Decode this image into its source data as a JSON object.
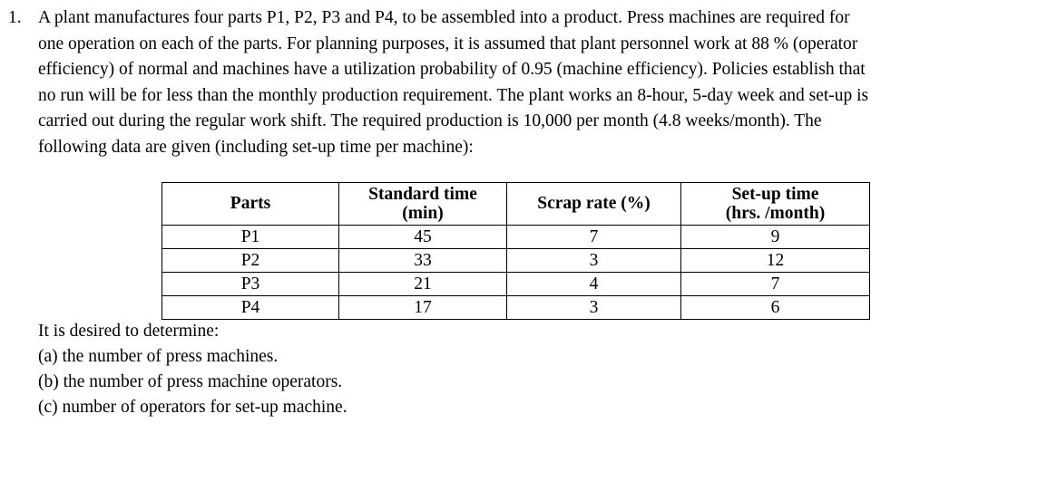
{
  "problem": {
    "number": "1.",
    "lines": [
      "A plant manufactures four parts P1, P2, P3 and P4, to be assembled into a product. Press machines are required for",
      "one operation on each of the parts. For planning purposes, it is assumed that plant personnel work at 88 % (operator",
      "efficiency) of normal and machines have a utilization probability of 0.95 (machine efficiency). Policies establish that",
      "no run will be for less than the monthly production requirement. The plant works an 8-hour, 5-day week and set-up is",
      "carried out during the regular work shift. The required production is 10,000 per month (4.8 weeks/month). The",
      "following data are given (including set-up time per machine):"
    ]
  },
  "table": {
    "headers": {
      "parts": "Parts",
      "standard_time": "Standard time\n(min)",
      "scrap_rate": "Scrap rate (%)",
      "setup_time": "Set-up time\n(hrs. /month)"
    },
    "rows": [
      {
        "part": "P1",
        "standard_time": "45",
        "scrap_rate": "7",
        "setup_time": "9"
      },
      {
        "part": "P2",
        "standard_time": "33",
        "scrap_rate": "3",
        "setup_time": "12"
      },
      {
        "part": "P3",
        "standard_time": "21",
        "scrap_rate": "4",
        "setup_time": "7"
      },
      {
        "part": "P4",
        "standard_time": "17",
        "scrap_rate": "3",
        "setup_time": "6"
      }
    ]
  },
  "determine": {
    "intro": "It is desired to determine:",
    "items": [
      "(a) the number of press machines.",
      "(b) the number of press machine operators.",
      "(c) number of operators for set-up machine."
    ]
  },
  "colors": {
    "background": "#ffffff",
    "text": "#000000",
    "table_border": "#000000"
  }
}
